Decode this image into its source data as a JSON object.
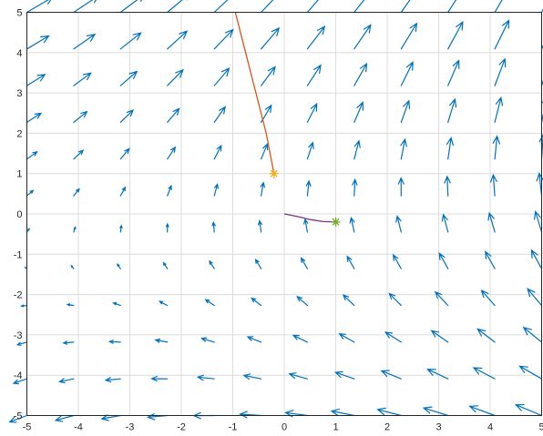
{
  "chart_data": {
    "type": "quiver",
    "xlim": [
      -5,
      5
    ],
    "ylim": [
      -5,
      5
    ],
    "xticks": [
      -5,
      -4,
      -3,
      -2,
      -1,
      0,
      1,
      2,
      3,
      4,
      5
    ],
    "yticks": [
      -5,
      -4,
      -3,
      -2,
      -1,
      0,
      1,
      2,
      3,
      4,
      5
    ],
    "xtick_labels": [
      "-5",
      "-4",
      "-3",
      "-2",
      "-1",
      "0",
      "1",
      "2",
      "3",
      "4",
      "5"
    ],
    "ytick_labels": [
      "-5",
      "-4",
      "-3",
      "-2",
      "-1",
      "0",
      "1",
      "2",
      "3",
      "4",
      "5"
    ],
    "grid": true,
    "title": "",
    "xlabel": "",
    "ylabel": "",
    "vector_field": {
      "color": "#0072BD",
      "grid_x": [
        -5,
        -4.09,
        -3.18,
        -2.27,
        -1.36,
        -0.45,
        0.45,
        1.36,
        2.27,
        3.18,
        4.09,
        5
      ],
      "grid_y": [
        -5,
        -4.09,
        -3.18,
        -2.27,
        -1.36,
        -0.45,
        0.45,
        1.36,
        2.27,
        3.18,
        4.09,
        5
      ],
      "field": "u = y - 0.2*x, v = 0.5*y + 0.4*x + 3 (approximate)"
    },
    "series": [
      {
        "color": "#D95319",
        "x": [
          -0.2,
          -0.35,
          -0.55,
          -0.75,
          -0.95
        ],
        "y": [
          1.0,
          2.0,
          3.0,
          4.0,
          5.0
        ]
      },
      {
        "color": "#7E2F8E",
        "x": [
          0.0,
          0.25,
          0.5,
          0.75,
          1.0
        ],
        "y": [
          0.0,
          -0.06,
          -0.14,
          -0.19,
          -0.2
        ]
      }
    ],
    "markers": [
      {
        "x": -0.2,
        "y": 1.0,
        "color": "#EDB120",
        "symbol": "*"
      },
      {
        "x": 1.0,
        "y": -0.2,
        "color": "#77AC30",
        "symbol": "*"
      }
    ]
  }
}
